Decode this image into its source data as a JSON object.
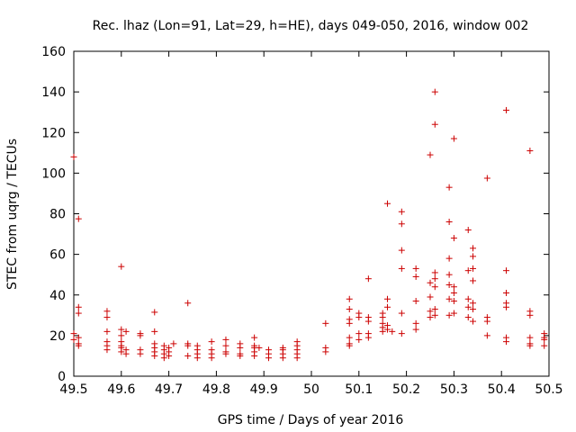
{
  "chart_data": {
    "type": "scatter",
    "title": "Rec. lhaz (Lon=91, Lat=29, h=HE), days 049-050, 2016, window 002",
    "xlabel": "GPS time / Days of year 2016",
    "ylabel": "STEC from uqrg / TECUs",
    "xlim": [
      49.5,
      50.5
    ],
    "ylim": [
      0,
      160
    ],
    "xticks": [
      49.5,
      49.6,
      49.7,
      49.8,
      49.9,
      50.0,
      50.1,
      50.2,
      50.3,
      50.4,
      50.5
    ],
    "xtick_labels": [
      "49.5",
      "49.6",
      "49.7",
      "49.8",
      "49.9",
      "50",
      "50.1",
      "50.2",
      "50.3",
      "50.4",
      "50.5"
    ],
    "yticks": [
      0,
      20,
      40,
      60,
      80,
      100,
      120,
      140,
      160
    ],
    "ytick_labels": [
      "0",
      "20",
      "40",
      "60",
      "80",
      "100",
      "120",
      "140",
      "160"
    ],
    "marker": "+",
    "color": "#cc0000",
    "series": [
      {
        "name": "STEC",
        "points": [
          [
            49.5,
            108
          ],
          [
            49.5,
            21
          ],
          [
            49.5,
            18
          ],
          [
            49.51,
            16
          ],
          [
            49.51,
            77.5
          ],
          [
            49.51,
            34
          ],
          [
            49.51,
            31
          ],
          [
            49.51,
            19
          ],
          [
            49.51,
            15
          ],
          [
            49.57,
            32
          ],
          [
            49.57,
            29
          ],
          [
            49.57,
            22
          ],
          [
            49.57,
            17
          ],
          [
            49.57,
            15
          ],
          [
            49.57,
            13
          ],
          [
            49.6,
            54
          ],
          [
            49.6,
            23
          ],
          [
            49.6,
            20
          ],
          [
            49.6,
            17
          ],
          [
            49.6,
            15
          ],
          [
            49.6,
            14
          ],
          [
            49.6,
            12
          ],
          [
            49.61,
            22
          ],
          [
            49.61,
            13
          ],
          [
            49.61,
            11
          ],
          [
            49.64,
            21
          ],
          [
            49.64,
            20
          ],
          [
            49.64,
            13
          ],
          [
            49.64,
            11
          ],
          [
            49.67,
            31.5
          ],
          [
            49.67,
            22
          ],
          [
            49.67,
            16
          ],
          [
            49.67,
            14
          ],
          [
            49.67,
            12
          ],
          [
            49.67,
            10
          ],
          [
            49.69,
            15
          ],
          [
            49.69,
            13
          ],
          [
            49.69,
            11
          ],
          [
            49.69,
            9
          ],
          [
            49.7,
            14
          ],
          [
            49.7,
            12
          ],
          [
            49.7,
            10
          ],
          [
            49.71,
            16
          ],
          [
            49.74,
            36
          ],
          [
            49.74,
            16
          ],
          [
            49.74,
            15
          ],
          [
            49.74,
            10
          ],
          [
            49.76,
            15
          ],
          [
            49.76,
            13
          ],
          [
            49.76,
            11
          ],
          [
            49.76,
            9
          ],
          [
            49.79,
            17
          ],
          [
            49.79,
            13
          ],
          [
            49.79,
            11
          ],
          [
            49.79,
            9
          ],
          [
            49.82,
            18
          ],
          [
            49.82,
            15
          ],
          [
            49.82,
            12
          ],
          [
            49.82,
            11
          ],
          [
            49.85,
            16
          ],
          [
            49.85,
            14
          ],
          [
            49.85,
            11
          ],
          [
            49.85,
            10
          ],
          [
            49.88,
            19
          ],
          [
            49.88,
            15
          ],
          [
            49.88,
            14
          ],
          [
            49.88,
            12
          ],
          [
            49.88,
            10
          ],
          [
            49.89,
            14
          ],
          [
            49.91,
            13
          ],
          [
            49.91,
            11
          ],
          [
            49.91,
            9
          ],
          [
            49.94,
            14
          ],
          [
            49.94,
            13
          ],
          [
            49.94,
            11
          ],
          [
            49.94,
            9
          ],
          [
            49.97,
            17
          ],
          [
            49.97,
            15
          ],
          [
            49.97,
            13
          ],
          [
            49.97,
            11
          ],
          [
            49.97,
            9
          ],
          [
            50.03,
            26
          ],
          [
            50.03,
            14
          ],
          [
            50.03,
            12
          ],
          [
            50.08,
            38
          ],
          [
            50.08,
            33
          ],
          [
            50.08,
            28
          ],
          [
            50.08,
            26
          ],
          [
            50.08,
            19
          ],
          [
            50.08,
            16
          ],
          [
            50.08,
            15
          ],
          [
            50.1,
            31
          ],
          [
            50.1,
            29
          ],
          [
            50.1,
            21
          ],
          [
            50.1,
            18
          ],
          [
            50.12,
            48
          ],
          [
            50.12,
            29
          ],
          [
            50.12,
            27
          ],
          [
            50.12,
            21
          ],
          [
            50.12,
            19
          ],
          [
            50.15,
            31
          ],
          [
            50.15,
            29
          ],
          [
            50.15,
            26
          ],
          [
            50.15,
            24
          ],
          [
            50.15,
            22
          ],
          [
            50.16,
            85
          ],
          [
            50.16,
            38
          ],
          [
            50.16,
            34
          ],
          [
            50.16,
            25
          ],
          [
            50.16,
            23
          ],
          [
            50.17,
            22
          ],
          [
            50.19,
            81
          ],
          [
            50.19,
            75
          ],
          [
            50.19,
            62
          ],
          [
            50.19,
            53
          ],
          [
            50.19,
            31
          ],
          [
            50.19,
            21
          ],
          [
            50.22,
            53
          ],
          [
            50.22,
            49
          ],
          [
            50.22,
            37
          ],
          [
            50.22,
            26
          ],
          [
            50.22,
            23
          ],
          [
            50.25,
            109
          ],
          [
            50.25,
            46
          ],
          [
            50.25,
            39
          ],
          [
            50.25,
            32
          ],
          [
            50.25,
            29
          ],
          [
            50.26,
            140
          ],
          [
            50.26,
            124
          ],
          [
            50.26,
            51
          ],
          [
            50.26,
            48
          ],
          [
            50.26,
            44
          ],
          [
            50.26,
            33
          ],
          [
            50.26,
            30
          ],
          [
            50.29,
            93
          ],
          [
            50.29,
            76
          ],
          [
            50.29,
            58
          ],
          [
            50.29,
            50
          ],
          [
            50.29,
            45
          ],
          [
            50.29,
            38
          ],
          [
            50.29,
            30
          ],
          [
            50.3,
            117
          ],
          [
            50.3,
            68
          ],
          [
            50.3,
            44
          ],
          [
            50.3,
            41
          ],
          [
            50.3,
            37
          ],
          [
            50.3,
            31
          ],
          [
            50.33,
            72
          ],
          [
            50.33,
            52
          ],
          [
            50.33,
            38
          ],
          [
            50.33,
            34
          ],
          [
            50.33,
            29
          ],
          [
            50.34,
            63
          ],
          [
            50.34,
            59
          ],
          [
            50.34,
            53
          ],
          [
            50.34,
            47
          ],
          [
            50.34,
            36
          ],
          [
            50.34,
            33
          ],
          [
            50.34,
            27
          ],
          [
            50.37,
            97.5
          ],
          [
            50.37,
            29
          ],
          [
            50.37,
            27
          ],
          [
            50.37,
            20
          ],
          [
            50.41,
            131
          ],
          [
            50.41,
            52
          ],
          [
            50.41,
            41
          ],
          [
            50.41,
            36
          ],
          [
            50.41,
            34
          ],
          [
            50.41,
            19
          ],
          [
            50.41,
            17
          ],
          [
            50.46,
            111
          ],
          [
            50.46,
            32
          ],
          [
            50.46,
            30
          ],
          [
            50.46,
            19
          ],
          [
            50.46,
            16
          ],
          [
            50.46,
            15
          ],
          [
            50.49,
            21
          ],
          [
            50.49,
            19
          ],
          [
            50.49,
            18
          ],
          [
            50.49,
            15
          ]
        ]
      }
    ]
  }
}
